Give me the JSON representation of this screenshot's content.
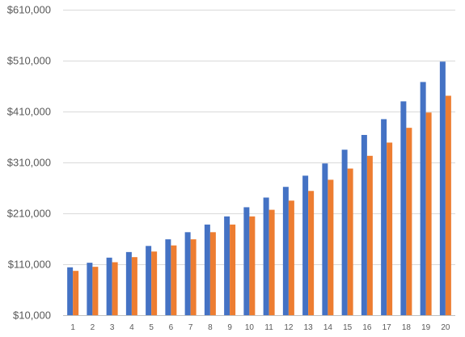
{
  "chart_data": {
    "type": "bar",
    "title": "",
    "xlabel": "",
    "ylabel": "",
    "categories": [
      "1",
      "2",
      "3",
      "4",
      "5",
      "6",
      "7",
      "8",
      "9",
      "10",
      "11",
      "12",
      "13",
      "14",
      "15",
      "16",
      "17",
      "18",
      "19",
      "20"
    ],
    "series": [
      {
        "color": "#4472C4",
        "values": [
          104000,
          113000,
          123000,
          134000,
          146000,
          159000,
          173000,
          188000,
          204000,
          222000,
          241000,
          262000,
          284000,
          308000,
          335000,
          364000,
          395000,
          430000,
          468000,
          508000
        ]
      },
      {
        "color": "#ED7D31",
        "values": [
          97000,
          105000,
          114000,
          124000,
          135000,
          147000,
          159000,
          173000,
          188000,
          204000,
          217000,
          235000,
          254000,
          276000,
          298000,
          323000,
          349000,
          378000,
          408000,
          441000
        ]
      }
    ],
    "ylim": [
      10000,
      610000
    ],
    "yticks": [
      10000,
      110000,
      210000,
      310000,
      410000,
      510000,
      610000
    ],
    "ytick_labels": [
      "$10,000",
      "$110,000",
      "$210,000",
      "$310,000",
      "$410,000",
      "$510,000",
      "$610,000"
    ],
    "grid": true,
    "legend": "none"
  }
}
